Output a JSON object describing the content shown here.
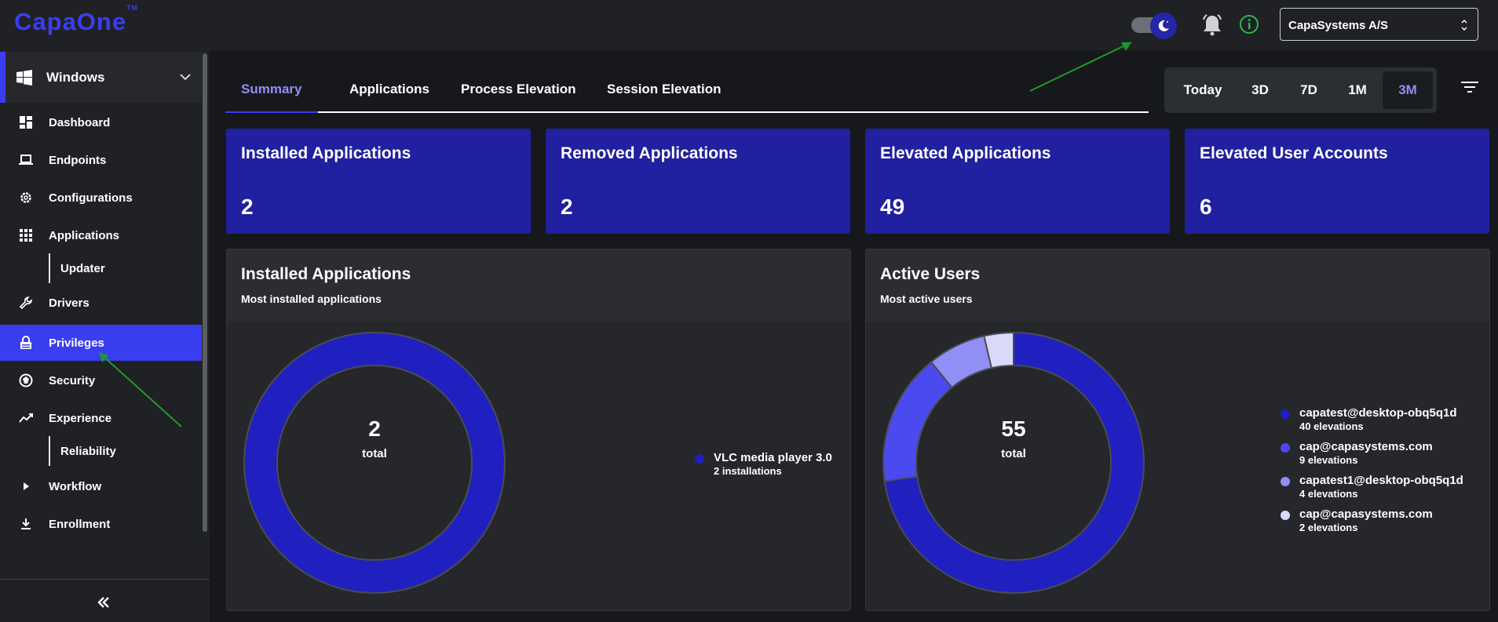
{
  "brand": {
    "logo_text": "CapaOne",
    "trademark": "TM"
  },
  "header": {
    "organization": "CapaSystems A/S",
    "icons": [
      "theme-toggle-moon-icon",
      "bell-icon",
      "info-icon"
    ]
  },
  "sidebar": {
    "os_selector": {
      "label": "Windows"
    },
    "items": [
      {
        "label": "Dashboard",
        "icon": "dashboard-icon"
      },
      {
        "label": "Endpoints",
        "icon": "laptop-icon"
      },
      {
        "label": "Configurations",
        "icon": "gear-icon"
      },
      {
        "label": "Applications",
        "icon": "grid-icon"
      },
      {
        "label": "Updater",
        "sub": true
      },
      {
        "label": "Drivers",
        "icon": "wrench-icon"
      },
      {
        "label": "Privileges",
        "icon": "lock-icon",
        "active": true
      },
      {
        "label": "Security",
        "icon": "shield-icon"
      },
      {
        "label": "Experience",
        "icon": "trend-icon"
      },
      {
        "label": "Reliability",
        "sub": true
      },
      {
        "label": "Workflow",
        "icon": "play-icon"
      },
      {
        "label": "Enrollment",
        "icon": "download-icon"
      }
    ]
  },
  "tabs": [
    {
      "label": "Summary",
      "active": true
    },
    {
      "label": "Applications"
    },
    {
      "label": "Process Elevation"
    },
    {
      "label": "Session Elevation"
    }
  ],
  "time_range": {
    "options": [
      "Today",
      "3D",
      "7D",
      "1M",
      "3M"
    ],
    "selected": "3M"
  },
  "stats": [
    {
      "title": "Installed Applications",
      "value": "2"
    },
    {
      "title": "Removed Applications",
      "value": "2"
    },
    {
      "title": "Elevated Applications",
      "value": "49"
    },
    {
      "title": "Elevated User Accounts",
      "value": "6"
    }
  ],
  "panels": {
    "installed": {
      "title": "Installed Applications",
      "subtitle": "Most installed applications",
      "total": "2",
      "total_label": "total"
    },
    "active_users": {
      "title": "Active Users",
      "subtitle": "Most active users",
      "total": "55",
      "total_label": "total"
    }
  },
  "chart_data": [
    {
      "type": "pie",
      "title": "Installed Applications",
      "categories": [
        "VLC media player 3.0"
      ],
      "values": [
        2
      ],
      "value_labels": [
        "2 installations"
      ],
      "colors": [
        "#2020c0"
      ],
      "center_value": "2",
      "center_label": "total",
      "legend": "right"
    },
    {
      "type": "pie",
      "title": "Active Users",
      "categories": [
        "capatest@desktop-obq5q1d",
        "cap@capasystems.com",
        "capatest1@desktop-obq5q1d",
        "cap@capasystems.com"
      ],
      "values": [
        40,
        9,
        4,
        2
      ],
      "value_labels": [
        "40 elevations",
        "9 elevations",
        "4 elevations",
        "2 elevations"
      ],
      "colors": [
        "#2020c0",
        "#4a4af0",
        "#8f8ff5",
        "#d9daf8"
      ],
      "center_value": "55",
      "center_label": "total",
      "legend": "right"
    }
  ]
}
